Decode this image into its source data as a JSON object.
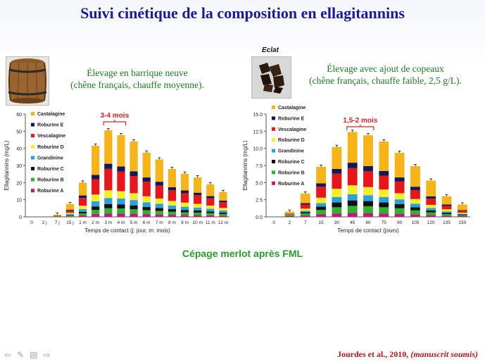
{
  "title": "Suivi cinétique de la composition en ellagitannins",
  "left_subtitle_1": "Élevage en barrique neuve",
  "left_subtitle_2": "(chêne français, chauffe moyenne).",
  "right_subtitle_1": "Élevage avec ajout de copeaux",
  "right_subtitle_2": "(chêne français, chauffe faible, 2,5 g/L).",
  "right_photo_label": "Eclat",
  "bottom_note": "Cépage merlot après FML",
  "citation_main": "Jourdes et al., 2010, ",
  "citation_italic": "(manuscrit soumis)",
  "colors": {
    "Castalagine": "#f7b418",
    "Roburine E": "#121a55",
    "Vescalagine": "#e8151a",
    "Roburine D": "#f2ef2a",
    "Grandinine": "#2aa0dc",
    "Roburine C": "#111111",
    "Roburine B": "#2bb52b",
    "Roburine A": "#c2187a"
  },
  "chart_data": [
    {
      "type": "bar",
      "stacked": true,
      "xlabel": "Temps de contact (j: jour, m: mois)",
      "ylabel": "Ellagitannins (mg/L)",
      "ylim": [
        0,
        60
      ],
      "yticks": [
        "0",
        "10",
        "20",
        "30",
        "40",
        "50",
        "60"
      ],
      "categories": [
        "0",
        "2 j",
        "7 j",
        "15 j",
        "1 m",
        "2 m",
        "3 m",
        "4 m",
        "5 m",
        "6 m",
        "7 m",
        "8 m",
        "9 m",
        "10 m",
        "11 m",
        "12 m"
      ],
      "annotation": "3-4 mois",
      "annotation_span": [
        "3 m",
        "4 m"
      ],
      "legend": [
        "Castalagine",
        "Roburine E",
        "Vescalagine",
        "Roburine D",
        "Grandinine",
        "Roburine C",
        "Roburine B",
        "Roburine A"
      ],
      "legend_position": "top-left",
      "series": [
        {
          "name": "Roburine A",
          "values": [
            0,
            0,
            0.1,
            0.3,
            0.8,
            1.6,
            2.0,
            2.0,
            1.8,
            1.6,
            1.4,
            1.2,
            1.1,
            1.0,
            0.9,
            0.7
          ]
        },
        {
          "name": "Roburine B",
          "values": [
            0,
            0,
            0.1,
            0.4,
            1.2,
            2.5,
            3.0,
            2.9,
            2.7,
            2.3,
            2.1,
            1.8,
            1.6,
            1.5,
            1.3,
            1.0
          ]
        },
        {
          "name": "Roburine C",
          "values": [
            0,
            0,
            0.1,
            0.4,
            1.0,
            2.0,
            2.5,
            2.4,
            2.2,
            1.9,
            1.7,
            1.5,
            1.3,
            1.2,
            1.0,
            0.8
          ]
        },
        {
          "name": "Grandinine",
          "values": [
            0,
            0,
            0.1,
            0.5,
            1.5,
            3.0,
            3.5,
            3.4,
            3.1,
            2.7,
            2.4,
            2.1,
            1.9,
            1.7,
            1.5,
            1.2
          ]
        },
        {
          "name": "Roburine D",
          "values": [
            0,
            0,
            0.1,
            0.7,
            2.0,
            3.9,
            4.5,
            4.3,
            4.0,
            3.5,
            3.1,
            2.7,
            2.4,
            2.2,
            1.9,
            1.5
          ]
        },
        {
          "name": "Vescalagine",
          "values": [
            0,
            0,
            0.2,
            1.3,
            4.5,
            9.0,
            12.5,
            11.5,
            10.0,
            8.5,
            7.5,
            6.2,
            5.5,
            5.0,
            4.2,
            3.3
          ]
        },
        {
          "name": "Roburine E",
          "values": [
            0,
            0,
            0.1,
            0.5,
            1.5,
            2.5,
            3.0,
            2.9,
            2.8,
            2.5,
            2.3,
            1.8,
            1.6,
            1.5,
            1.3,
            1.0
          ]
        },
        {
          "name": "Castalagine",
          "values": [
            0,
            0,
            0.5,
            3.4,
            7.5,
            17.0,
            19.5,
            18.3,
            17.4,
            14.5,
            13.0,
            10.7,
            9.8,
            8.9,
            6.9,
            5.0
          ]
        }
      ]
    },
    {
      "type": "bar",
      "stacked": true,
      "xlabel": "Temps de contact (jours)",
      "ylabel": "Ellagitannins (mg/L)",
      "ylim": [
        0,
        15
      ],
      "yticks": [
        "0.0",
        "2.5",
        "5.0",
        "7.5",
        "10.0",
        "12.5",
        "15.0"
      ],
      "categories": [
        "0",
        "2",
        "7",
        "15",
        "30",
        "45",
        "60",
        "75",
        "90",
        "105",
        "120",
        "135",
        "150"
      ],
      "annotation": "1,5-2 mois",
      "annotation_span": [
        "45",
        "60"
      ],
      "legend": [
        "Castalagine",
        "Roburine E",
        "Vescalagine",
        "Roburine D",
        "Grandinine",
        "Roburine C",
        "Roburine B",
        "Roburine A"
      ],
      "legend_position": "top-left",
      "series": [
        {
          "name": "Roburine A",
          "values": [
            0,
            0.05,
            0.2,
            0.4,
            0.5,
            0.6,
            0.55,
            0.5,
            0.45,
            0.35,
            0.25,
            0.15,
            0.1
          ]
        },
        {
          "name": "Roburine B",
          "values": [
            0,
            0.1,
            0.3,
            0.6,
            0.9,
            1.0,
            1.0,
            0.9,
            0.8,
            0.6,
            0.4,
            0.25,
            0.15
          ]
        },
        {
          "name": "Roburine C",
          "values": [
            0,
            0.05,
            0.2,
            0.5,
            0.7,
            0.8,
            0.75,
            0.7,
            0.6,
            0.45,
            0.3,
            0.2,
            0.1
          ]
        },
        {
          "name": "Grandinine",
          "values": [
            0,
            0.05,
            0.2,
            0.5,
            0.8,
            0.9,
            0.85,
            0.8,
            0.7,
            0.5,
            0.35,
            0.2,
            0.1
          ]
        },
        {
          "name": "Roburine D",
          "values": [
            0,
            0.05,
            0.3,
            0.8,
            1.2,
            1.3,
            1.2,
            1.1,
            0.9,
            0.7,
            0.45,
            0.3,
            0.15
          ]
        },
        {
          "name": "Vescalagine",
          "values": [
            0,
            0.1,
            0.6,
            1.6,
            2.2,
            2.5,
            2.3,
            2.0,
            1.7,
            1.3,
            0.9,
            0.5,
            0.3
          ]
        },
        {
          "name": "Roburine E",
          "values": [
            0,
            0.05,
            0.2,
            0.5,
            0.7,
            0.8,
            0.75,
            0.7,
            0.6,
            0.5,
            0.35,
            0.2,
            0.1
          ]
        },
        {
          "name": "Castalagine",
          "values": [
            0,
            0.3,
            1.4,
            2.4,
            3.2,
            4.5,
            4.5,
            4.3,
            3.6,
            3.0,
            2.3,
            1.2,
            0.8
          ]
        }
      ]
    }
  ]
}
